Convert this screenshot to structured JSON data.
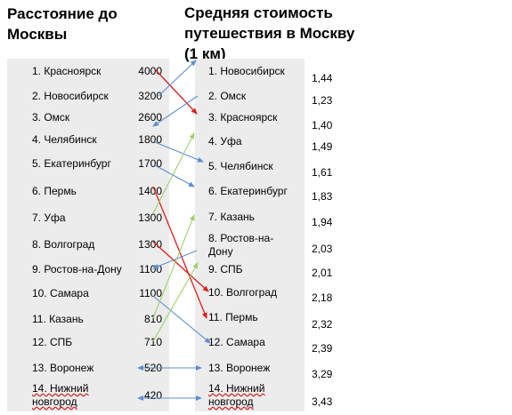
{
  "left_title": "Расстояние до Москвы",
  "right_title": "Средняя стоимость путешествия в Москву (1 км)",
  "distance_rows": [
    {
      "label": "1.   Красноярск",
      "value": "4000"
    },
    {
      "label": "2.    Новосибирск",
      "value": "3200"
    },
    {
      "label": "3.    Омск",
      "value": "2600"
    },
    {
      "label": "4.    Челябинск",
      "value": "1800"
    },
    {
      "label": "5.    Екатеринбург",
      "value": "1700"
    },
    {
      "label": "6.  Пермь",
      "value": "1400"
    },
    {
      "label": "7.  Уфа",
      "value": "1300"
    },
    {
      "label": "8.  Волгоград",
      "value": "1300"
    },
    {
      "label": "9.    Ростов-на-Дону",
      "value": "1100"
    },
    {
      "label": "10.    Самара",
      "value": "1100"
    },
    {
      "label": "11.    Казань",
      "value": "810"
    },
    {
      "label": "12.      СПБ",
      "value": "710"
    },
    {
      "label": "13. Воронеж",
      "value": "520"
    },
    {
      "label": "14.     Нижний новгород",
      "value": "420"
    }
  ],
  "cost_rows": [
    {
      "label": "1.      Новосибирск",
      "value": "1,44"
    },
    {
      "label": "2.      Омск",
      "value": "1,23"
    },
    {
      "label": "3.  Красноярск",
      "value": "1,40"
    },
    {
      "label": "4.  Уфа",
      "value": "1,49"
    },
    {
      "label": "5.       Челябинск",
      "value": "1,61"
    },
    {
      "label": "6.      Екатеринбург",
      "value": "1,83"
    },
    {
      "label": "7.      Казань",
      "value": "1,94"
    },
    {
      "label": "8.      Ростов-на-Дону",
      "value": "2,03"
    },
    {
      "label": "9.      СПБ",
      "value": "2,01"
    },
    {
      "label": "10.  Волгоград",
      "value": "2,18"
    },
    {
      "label": "11.  Пермь",
      "value": "2,32"
    },
    {
      "label": "12.      Самара",
      "value": "2,39"
    },
    {
      "label": "13.  Воронеж",
      "value": "3,29"
    },
    {
      "label": "14.      Нижний новгород",
      "value": "3,43"
    }
  ],
  "arrow_colors": {
    "red": "#e01b1b",
    "blue": "#5b8fd0",
    "green": "#9bd16a"
  }
}
